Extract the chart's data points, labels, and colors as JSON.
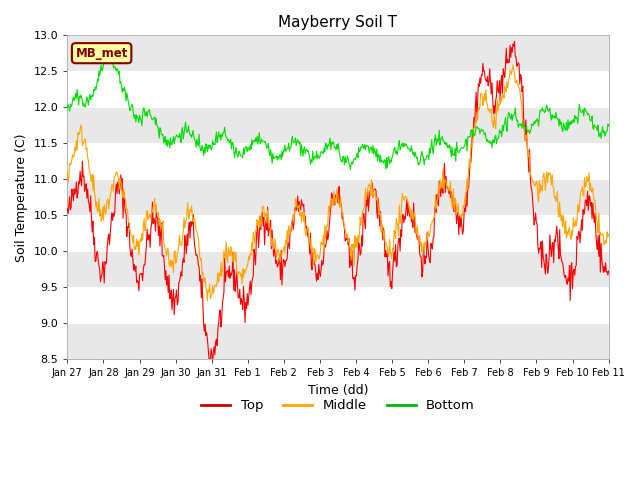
{
  "title": "Mayberry Soil T",
  "xlabel": "Time (dd)",
  "ylabel": "Soil Temperature (C)",
  "ylim": [
    8.5,
    13.0
  ],
  "yticks": [
    8.5,
    9.0,
    9.5,
    10.0,
    10.5,
    11.0,
    11.5,
    12.0,
    12.5,
    13.0
  ],
  "xtick_labels": [
    "Jan 27",
    "Jan 28",
    "Jan 29",
    "Jan 30",
    "Jan 31",
    "Feb 1",
    "Feb 2",
    "Feb 3",
    "Feb 4",
    "Feb 5",
    "Feb 6",
    "Feb 7",
    "Feb 8",
    "Feb 9",
    "Feb 10",
    "Feb 11"
  ],
  "legend_label": "MB_met",
  "legend_box_color": "#FFFFA0",
  "legend_box_edge": "#800000",
  "line_colors": {
    "top": "#FF0000",
    "middle": "#FFA500",
    "bottom": "#00DD00"
  },
  "line_labels": [
    "Top",
    "Middle",
    "Bottom"
  ],
  "line_legend_colors": [
    "#CC0000",
    "#FFA500",
    "#00BB00"
  ],
  "bg_color": "#FFFFFF",
  "plot_bg_color": "#FFFFFF",
  "band_color": "#E8E8E8",
  "n_points": 720,
  "seed": 42
}
